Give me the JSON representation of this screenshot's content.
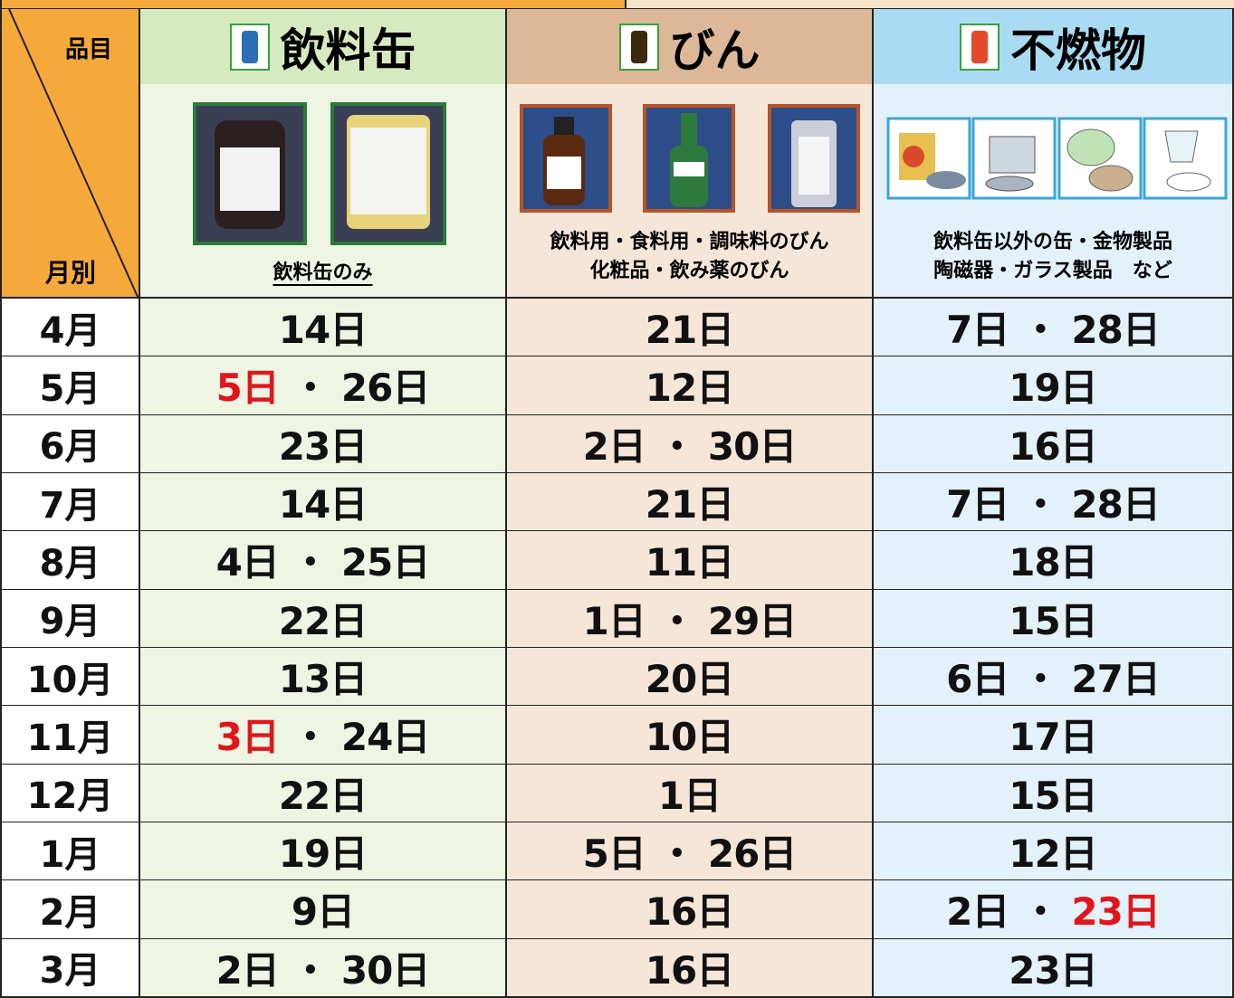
{
  "table": {
    "corner_top": "品目",
    "corner_bottom": "月別",
    "separator": "・",
    "highlight_color": "#e0161c",
    "columns": [
      {
        "title": "飲料缶",
        "captions": [
          "飲料缶のみ"
        ]
      },
      {
        "title": "びん",
        "captions": [
          "飲料用・食料用・調味料のびん",
          "化粧品・飲み薬のびん"
        ]
      },
      {
        "title": "不燃物",
        "captions": [
          "飲料缶以外の缶・金物製品",
          "陶磁器・ガラス製品　など"
        ]
      }
    ],
    "rows": [
      {
        "month": "4月",
        "cells": [
          [
            "14日"
          ],
          [
            "21日"
          ],
          [
            "7日",
            "28日"
          ]
        ]
      },
      {
        "month": "5月",
        "cells": [
          [
            {
              "text": "5日",
              "highlight": true
            },
            "26日"
          ],
          [
            "12日"
          ],
          [
            "19日"
          ]
        ]
      },
      {
        "month": "6月",
        "cells": [
          [
            "23日"
          ],
          [
            "2日",
            "30日"
          ],
          [
            "16日"
          ]
        ]
      },
      {
        "month": "7月",
        "cells": [
          [
            "14日"
          ],
          [
            "21日"
          ],
          [
            "7日",
            "28日"
          ]
        ]
      },
      {
        "month": "8月",
        "cells": [
          [
            "4日",
            "25日"
          ],
          [
            "11日"
          ],
          [
            "18日"
          ]
        ]
      },
      {
        "month": "9月",
        "cells": [
          [
            "22日"
          ],
          [
            "1日",
            "29日"
          ],
          [
            "15日"
          ]
        ]
      },
      {
        "month": "10月",
        "cells": [
          [
            "13日"
          ],
          [
            "20日"
          ],
          [
            "6日",
            "27日"
          ]
        ]
      },
      {
        "month": "11月",
        "cells": [
          [
            {
              "text": "3日",
              "highlight": true
            },
            "24日"
          ],
          [
            "10日"
          ],
          [
            "17日"
          ]
        ]
      },
      {
        "month": "12月",
        "cells": [
          [
            "22日"
          ],
          [
            "1日"
          ],
          [
            "15日"
          ]
        ]
      },
      {
        "month": "1月",
        "cells": [
          [
            "19日"
          ],
          [
            "5日",
            "26日"
          ],
          [
            "12日"
          ]
        ]
      },
      {
        "month": "2月",
        "cells": [
          [
            "9日"
          ],
          [
            "16日"
          ],
          [
            "2日",
            {
              "text": "23日",
              "highlight": true
            }
          ]
        ]
      },
      {
        "month": "3月",
        "cells": [
          [
            "2日",
            "30日"
          ],
          [
            "16日"
          ],
          [
            "23日"
          ]
        ]
      }
    ]
  }
}
